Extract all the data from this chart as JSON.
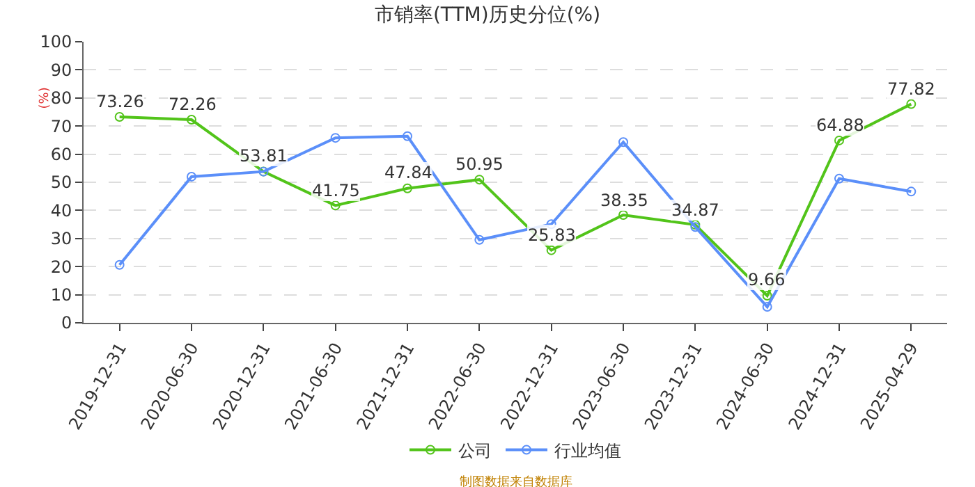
{
  "chart_data": {
    "type": "line",
    "title": "市销率(TTM)历史分位(%)",
    "ylabel": "(%)",
    "categories": [
      "2019-12-31",
      "2020-06-30",
      "2020-12-31",
      "2021-06-30",
      "2021-12-31",
      "2022-06-30",
      "2022-12-31",
      "2023-06-30",
      "2023-12-31",
      "2024-06-30",
      "2024-12-31",
      "2025-04-29"
    ],
    "series": [
      {
        "name": "公司",
        "color": "#52c41a",
        "values": [
          73.26,
          72.26,
          53.81,
          41.75,
          47.84,
          50.95,
          25.83,
          38.35,
          34.87,
          9.66,
          64.88,
          77.82
        ],
        "value_labels": [
          "73.26",
          "72.26",
          "53.81",
          "41.75",
          "47.84",
          "50.95",
          "25.83",
          "38.35",
          "34.87",
          "9.66",
          "64.88",
          "77.82"
        ]
      },
      {
        "name": "行业均值",
        "color": "#5b8ff9",
        "values": [
          20.6,
          52.0,
          53.8,
          65.8,
          66.4,
          29.5,
          35.1,
          64.3,
          34.1,
          5.7,
          51.3,
          46.7
        ]
      }
    ],
    "ylim": [
      0,
      100
    ],
    "yticks": [
      0,
      10,
      20,
      30,
      40,
      50,
      60,
      70,
      80,
      90,
      100
    ],
    "grid": "y",
    "legend": "bottom",
    "marker": "circle",
    "line_style": "solid",
    "annotations": [
      "制图数据来自数据库"
    ]
  }
}
